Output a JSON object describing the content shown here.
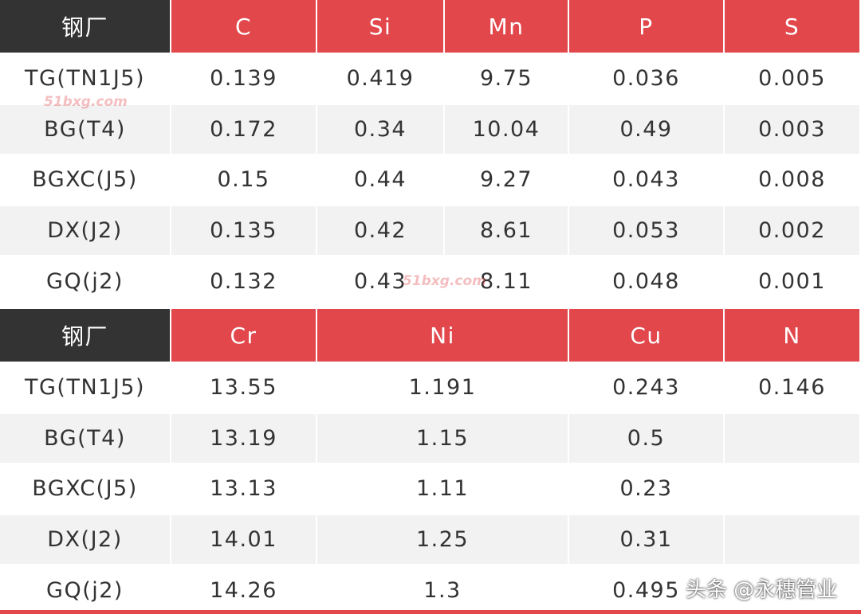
{
  "tables": [
    {
      "header": [
        "钢厂",
        "C",
        "Si",
        "Mn",
        "P",
        "S"
      ],
      "rows": [
        [
          "TG(TN1J5)",
          "0.139",
          "0.419",
          "9.75",
          "0.036",
          "0.005"
        ],
        [
          "BG(T4)",
          "0.172",
          "0.34",
          "10.04",
          "0.49",
          "0.003"
        ],
        [
          "BGXC(J5)",
          "0.15",
          "0.44",
          "9.27",
          "0.043",
          "0.008"
        ],
        [
          "DX(J2)",
          "0.135",
          "0.42",
          "8.61",
          "0.053",
          "0.002"
        ],
        [
          "GQ(j2)",
          "0.132",
          "0.43",
          "8.11",
          "0.048",
          "0.001"
        ]
      ]
    },
    {
      "header": [
        "钢厂",
        "Cr",
        "Ni",
        "Cu",
        "N"
      ],
      "rows": [
        [
          "TG(TN1J5)",
          "13.55",
          "1.191",
          "0.243",
          "0.146"
        ],
        [
          "BG(T4)",
          "13.19",
          "1.15",
          "0.5"
        ],
        [
          "BGXC(J5)",
          "13.13",
          "1.11",
          "0.23"
        ],
        [
          "DX(J2)",
          "14.01",
          "1.25",
          "0.31"
        ],
        [
          "GQ(j2)",
          "14.26",
          "1.3",
          "0.495"
        ]
      ]
    }
  ],
  "watermarks": [
    "51bxg.com",
    "51bxg.com",
    "头条 @永穗管业"
  ]
}
